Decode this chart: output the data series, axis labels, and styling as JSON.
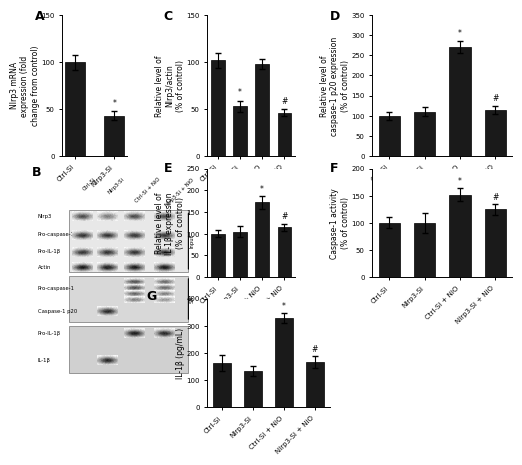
{
  "panel_A": {
    "categories": [
      "Ctrl-Si",
      "Nlrp3-Si"
    ],
    "values": [
      100,
      43
    ],
    "errors": [
      8,
      5
    ],
    "ylabel": "Nlrp3 mRNA\nexpression (fold\nchange from control)",
    "ylim": [
      0,
      150
    ],
    "yticks": [
      0,
      50,
      100,
      150
    ],
    "sig": [
      "",
      "*"
    ]
  },
  "panel_C": {
    "categories": [
      "Ctrl-Si",
      "Nlrp3-Si",
      "Ctrl-Si + NiO",
      "Nlrp3-Si + NiO"
    ],
    "values": [
      102,
      53,
      98,
      46
    ],
    "errors": [
      8,
      6,
      5,
      4
    ],
    "ylabel": "Relative level of\nNlrp3/actin\n(% of control)",
    "ylim": [
      0,
      150
    ],
    "yticks": [
      0,
      50,
      100,
      150
    ],
    "sig": [
      "",
      "*",
      "",
      "#"
    ]
  },
  "panel_D": {
    "categories": [
      "Ctrl-Si",
      "Nlrp3-Si",
      "Ctrl-Si + NiO",
      "Nlrp3-Si + NiO"
    ],
    "values": [
      100,
      110,
      270,
      113
    ],
    "errors": [
      10,
      12,
      15,
      10
    ],
    "ylabel": "Relative level of\ncaspase-1 p20 expression\n(% of control)",
    "ylim": [
      0,
      350
    ],
    "yticks": [
      0,
      50,
      100,
      150,
      200,
      250,
      300,
      350
    ],
    "sig": [
      "",
      "",
      "*",
      "#"
    ]
  },
  "panel_E": {
    "categories": [
      "Ctrl-Si",
      "Nlrp3-Si",
      "Ctrl-Si + NiO",
      "Nlrp3-Si + NiO"
    ],
    "values": [
      100,
      105,
      172,
      115
    ],
    "errors": [
      8,
      12,
      15,
      8
    ],
    "ylabel": "Relative level of\nIL-1β expression\n(% of control)",
    "ylim": [
      0,
      250
    ],
    "yticks": [
      0,
      50,
      100,
      150,
      200,
      250
    ],
    "sig": [
      "",
      "",
      "*",
      "#"
    ]
  },
  "panel_F": {
    "categories": [
      "Ctrl-Si",
      "Nlrp3-Si",
      "Ctrl-Si + NiO",
      "Nlrp3-Si + NiO"
    ],
    "values": [
      100,
      100,
      152,
      125
    ],
    "errors": [
      10,
      18,
      12,
      10
    ],
    "ylabel": "Caspase-1 activity\n(% of control)",
    "ylim": [
      0,
      200
    ],
    "yticks": [
      0,
      50,
      100,
      150,
      200
    ],
    "sig": [
      "",
      "",
      "*",
      "#"
    ]
  },
  "panel_G": {
    "categories": [
      "Ctrl-Si",
      "Nlrp3-Si",
      "Ctrl-Si + NiO",
      "Nlrp3-Si + NiO"
    ],
    "values": [
      162,
      133,
      328,
      165
    ],
    "errors": [
      30,
      20,
      18,
      22
    ],
    "ylabel": "IL-1β (pg/mL)",
    "ylim": [
      0,
      400
    ],
    "yticks": [
      0,
      100,
      200,
      300,
      400
    ],
    "sig": [
      "",
      "",
      "*",
      "#"
    ]
  },
  "bar_color": "#1a1a1a",
  "bar_width": 0.6,
  "label_fontsize": 5.5,
  "tick_fontsize": 5.0,
  "panel_label_fontsize": 9,
  "blot_col_headers": [
    "Ctrl-Si",
    "Nlrp3-Si",
    "Ctrl-Si + NiO",
    "Nlrp3-Si + NiO"
  ],
  "blot_input_rows": [
    "Nlrp3",
    "Pro-caspase-1",
    "Pro-IL-1β",
    "Actin"
  ],
  "blot_sn_rows_top": [
    "Pro-caspase-1"
  ],
  "blot_sn_rows_bot": [
    "Caspase-1 p20",
    "Pro-IL-1β",
    "IL-1β"
  ]
}
